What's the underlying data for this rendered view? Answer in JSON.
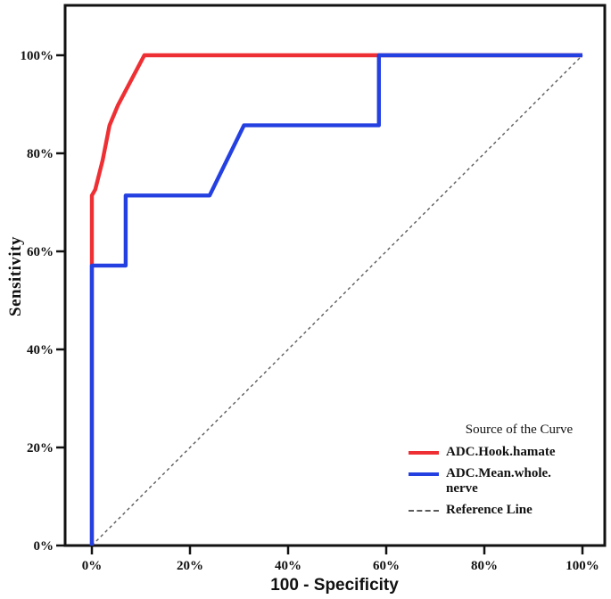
{
  "figure": {
    "title": "",
    "background": "#ffffff",
    "frame_color": "#111111"
  },
  "legend": {
    "title": "Source of the Curve",
    "items": [
      {
        "label": "ADC.Hook.hamate",
        "color": "#ee3034",
        "style": "solid"
      },
      {
        "label": "ADC.Mean.whole.\nnerve",
        "color": "#2440e1",
        "style": "solid"
      },
      {
        "label": "Reference Line",
        "color": "#5a5a5a",
        "style": "dashed"
      }
    ]
  },
  "chart_data": {
    "type": "line",
    "subtype": "roc-curve",
    "title": "",
    "xlabel": "100 - Specificity",
    "ylabel": "Sensitivity",
    "xlim": [
      0,
      100
    ],
    "ylim": [
      0,
      100
    ],
    "x_tick_values": [
      0,
      20,
      40,
      60,
      80,
      100
    ],
    "x_tick_labels": [
      "0%",
      "20%",
      "40%",
      "60%",
      "80%",
      "100%"
    ],
    "y_tick_values": [
      0,
      20,
      40,
      60,
      80,
      100
    ],
    "y_tick_labels": [
      "0%",
      "20%",
      "40%",
      "60%",
      "80%",
      "100%"
    ],
    "grid": false,
    "legend_position": "bottom-right",
    "series": [
      {
        "name": "Reference Line",
        "color": "#5a5a5a",
        "width": 1.4,
        "dashed": true,
        "points": [
          [
            0,
            0
          ],
          [
            100,
            100
          ]
        ]
      },
      {
        "name": "ADC.Hook.hamate",
        "color": "#ee3034",
        "width": 4.4,
        "dashed": false,
        "points": [
          [
            0,
            0
          ],
          [
            0,
            71.4
          ],
          [
            0.7,
            72.6
          ],
          [
            2.2,
            78.6
          ],
          [
            3.6,
            85.7
          ],
          [
            5.3,
            89.8
          ],
          [
            10.7,
            100
          ],
          [
            100,
            100
          ]
        ]
      },
      {
        "name": "ADC.Mean.whole.nerve",
        "color": "#2440e1",
        "width": 4.4,
        "dashed": false,
        "points": [
          [
            0,
            0
          ],
          [
            0,
            57.1
          ],
          [
            6.9,
            57.1
          ],
          [
            6.9,
            71.4
          ],
          [
            24,
            71.4
          ],
          [
            31,
            85.7
          ],
          [
            58.5,
            85.7
          ],
          [
            58.5,
            100
          ],
          [
            100,
            100
          ]
        ]
      }
    ]
  }
}
